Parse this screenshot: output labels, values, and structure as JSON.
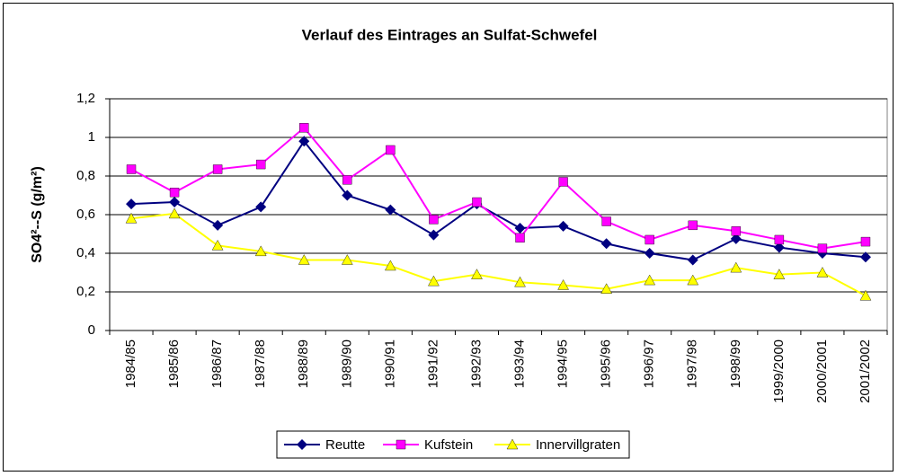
{
  "chart_data": {
    "type": "line",
    "title": "Verlauf des Eintrages an Sulfat-Schwefel",
    "y_label": "SO4²--S (g/m²)",
    "categories": [
      "1984/85",
      "1985/86",
      "1986/87",
      "1987/88",
      "1988/89",
      "1989/90",
      "1990/91",
      "1991/92",
      "1992/93",
      "1993/94",
      "1994/95",
      "1995/96",
      "1996/97",
      "1997/98",
      "1998/99",
      "1999/2000",
      "2000/2001",
      "2001/2002"
    ],
    "series": [
      {
        "name": "Reutte",
        "color": "#000080",
        "marker": "diamond",
        "values": [
          0.655,
          0.665,
          0.545,
          0.64,
          0.98,
          0.7,
          0.625,
          0.495,
          0.655,
          0.53,
          0.54,
          0.45,
          0.4,
          0.365,
          0.475,
          0.43,
          0.4,
          0.38
        ]
      },
      {
        "name": "Kufstein",
        "color": "#ff00ff",
        "marker": "square",
        "values": [
          0.835,
          0.715,
          0.835,
          0.86,
          1.05,
          0.78,
          0.935,
          0.575,
          0.665,
          0.48,
          0.77,
          0.565,
          0.47,
          0.545,
          0.515,
          0.47,
          0.425,
          0.46
        ]
      },
      {
        "name": "Innervillgraten",
        "color": "#ffff00",
        "marker": "triangle",
        "values": [
          0.58,
          0.605,
          0.44,
          0.41,
          0.365,
          0.365,
          0.335,
          0.255,
          0.29,
          0.25,
          0.235,
          0.215,
          0.26,
          0.26,
          0.325,
          0.29,
          0.3,
          0.18
        ]
      }
    ],
    "ylim": [
      0,
      1.2
    ],
    "yticks": [
      0,
      {
        "value": 0.2,
        "label": "0,2"
      },
      {
        "value": 0.4,
        "label": "0,4"
      },
      {
        "value": 0.6,
        "label": "0,6"
      },
      {
        "value": 0.8,
        "label": "0,8"
      },
      1,
      {
        "value": 1.2,
        "label": "1,2"
      }
    ],
    "grid": true,
    "legend": "bottom"
  }
}
